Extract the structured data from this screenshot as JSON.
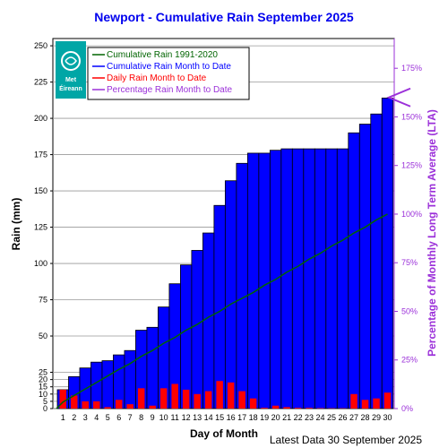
{
  "chart_data": {
    "type": "bar",
    "title": "Newport - Cumulative Rain September   2025",
    "xlabel": "Day of Month",
    "ylabel": "Rain (mm)",
    "y2label": "Percentage  of Monthly Long Term Average (LTA)",
    "footer": "Latest Data 30 September 2025",
    "logo": {
      "line1": "Met",
      "line2": "Éireann"
    },
    "x": [
      1,
      2,
      3,
      4,
      5,
      6,
      7,
      8,
      9,
      10,
      11,
      12,
      13,
      14,
      15,
      16,
      17,
      18,
      19,
      20,
      21,
      22,
      23,
      24,
      25,
      26,
      27,
      28,
      29,
      30
    ],
    "ylim": [
      0,
      255
    ],
    "y_ticks": [
      0,
      5,
      10,
      15,
      20,
      25,
      50,
      75,
      100,
      125,
      150,
      175,
      200,
      225,
      250
    ],
    "y2_ticks": [
      "0%",
      "25%",
      "50%",
      "75%",
      "100%",
      "125%",
      "150%",
      "175%"
    ],
    "y2_tick_values": [
      0,
      25,
      50,
      75,
      100,
      125,
      150,
      175
    ],
    "lta_total_mm": 134,
    "legend": {
      "position": "top-left",
      "entries": [
        {
          "label": "Cumulative Rain 1991-2020",
          "color": "#006400"
        },
        {
          "label": "Cumulative Rain Month to Date",
          "color": "#0000ff"
        },
        {
          "label": "Daily Rain Month to Date",
          "color": "#ff0000"
        },
        {
          "label": "Percentage Rain Month to Date",
          "color": "#9b30d9"
        }
      ]
    },
    "series": [
      {
        "name": "Cumulative Rain Month to Date",
        "color": "#0000ff",
        "values": [
          13,
          22,
          28,
          32,
          33,
          37,
          40,
          54,
          56,
          70,
          86,
          99,
          109,
          121,
          140,
          157,
          169,
          176,
          176,
          178,
          179,
          179,
          179,
          179,
          179,
          179,
          190,
          196,
          203,
          214
        ]
      },
      {
        "name": "Daily Rain Month to Date",
        "color": "#ff0000",
        "values": [
          13,
          9,
          5,
          5,
          1,
          6,
          3,
          14,
          2,
          14,
          17,
          13,
          10,
          12,
          19,
          18,
          12,
          7,
          0.5,
          2,
          1,
          0.5,
          0.5,
          0.3,
          0.2,
          0.2,
          10,
          6,
          7,
          11
        ]
      },
      {
        "name": "Cumulative Rain 1991-2020",
        "color": "#006400",
        "values": [
          4.5,
          9,
          13.5,
          18,
          22.5,
          27,
          31,
          36,
          40,
          45,
          49,
          54,
          58,
          63,
          67,
          72,
          76,
          80,
          85,
          89,
          94,
          98,
          103,
          107,
          112,
          116,
          121,
          125,
          130,
          134
        ]
      }
    ],
    "percentage_latest": 160,
    "grid": true
  }
}
